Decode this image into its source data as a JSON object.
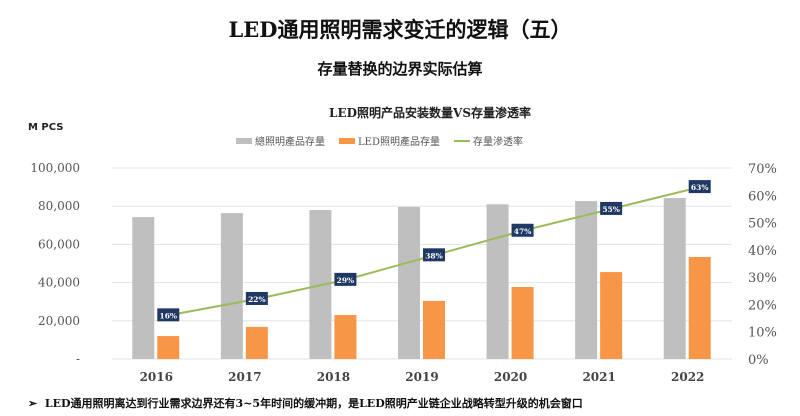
{
  "title": "LED通用照明需求变迁的逻辑（五）",
  "subtitle": "存量替换的边界实际估算",
  "footnote_bullet": "➢",
  "footnote": "LED通用照明离达到行业需求边界还有3~5年时间的缓冲期，是LED照明产业链企业战略转型升级的机会窗口",
  "chart_data": {
    "type": "bar+line",
    "title": "LED照明产品安装数量VS存量渗透率",
    "ylabel": "M PCS",
    "categories": [
      "2016",
      "2017",
      "2018",
      "2019",
      "2020",
      "2021",
      "2022"
    ],
    "ylim": [
      0,
      100000
    ],
    "yticks": [
      "-",
      "20,000",
      "40,000",
      "60,000",
      "80,000",
      "100,000"
    ],
    "y2lim": [
      0,
      70
    ],
    "y2ticks": [
      "0%",
      "10%",
      "20%",
      "30%",
      "40%",
      "50%",
      "60%",
      "70%"
    ],
    "grid": true,
    "legend_position": "top",
    "series": [
      {
        "name": "總照明產品存量",
        "type": "bar",
        "axis": "left",
        "color": "#BFBFBF",
        "values": [
          74300,
          76400,
          78000,
          79600,
          81000,
          82700,
          84300
        ]
      },
      {
        "name": "LED照明產品存量",
        "type": "bar",
        "axis": "right-none",
        "color": "#F79646",
        "values": [
          12000,
          16800,
          23000,
          30400,
          37700,
          45500,
          53400
        ]
      },
      {
        "name": "存量滲透率",
        "type": "line",
        "axis": "right",
        "color": "#9BBB59",
        "values": [
          16,
          22,
          29,
          38,
          47,
          55,
          63
        ],
        "labels": [
          "16%",
          "22%",
          "29%",
          "38%",
          "47%",
          "55%",
          "63%"
        ],
        "label_bg": "#1F3864"
      }
    ]
  }
}
